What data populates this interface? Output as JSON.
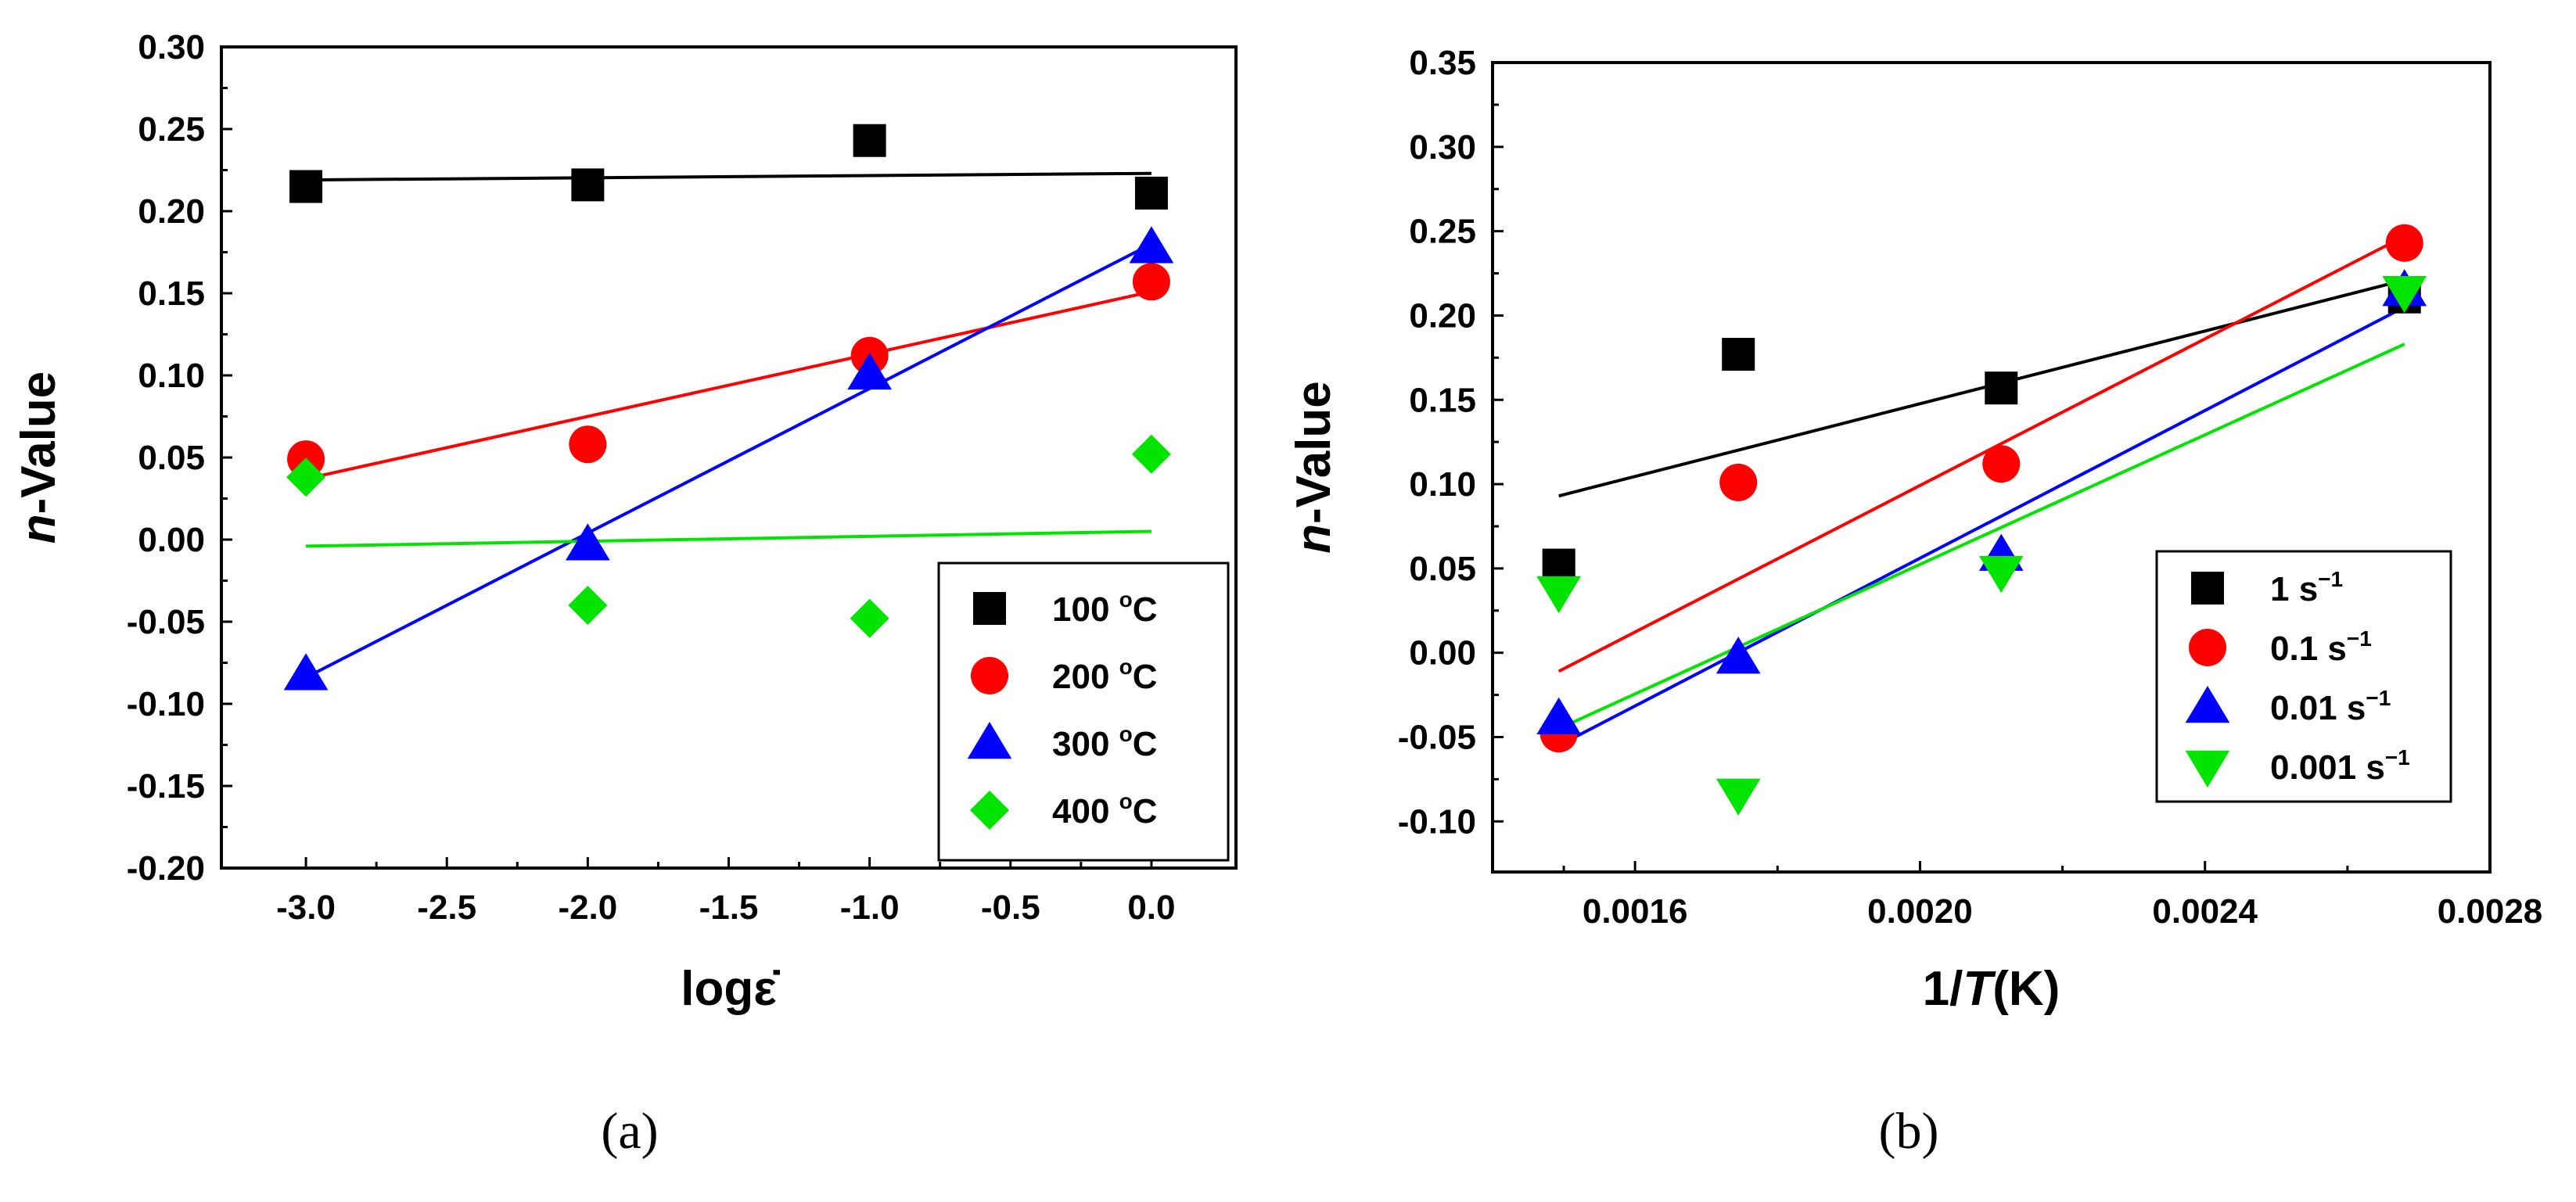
{
  "chart_data": [
    {
      "type": "scatter",
      "panel_label": "(a)",
      "ylabel": {
        "prefix": "n",
        "suffix": "-Value"
      },
      "xlabel": "logε̇",
      "xlim": [
        -3.3,
        0.3
      ],
      "ylim": [
        -0.2,
        0.3
      ],
      "xticks": [
        -3.0,
        -2.5,
        -2.0,
        -1.5,
        -1.0,
        -0.5,
        0.0
      ],
      "xtick_labels": [
        "-3.0",
        "-2.5",
        "-2.0",
        "-1.5",
        "-1.0",
        "-0.5",
        "0.0"
      ],
      "yticks": [
        -0.2,
        -0.15,
        -0.1,
        -0.05,
        0.0,
        0.05,
        0.1,
        0.15,
        0.2,
        0.25,
        0.3
      ],
      "ytick_labels": [
        "-0.20",
        "-0.15",
        "-0.10",
        "-0.05",
        "0.00",
        "0.05",
        "0.10",
        "0.15",
        "0.20",
        "0.25",
        "0.30"
      ],
      "legend_position": "bottom-right",
      "series": [
        {
          "name": "100",
          "unit": "oC",
          "color": "#000000",
          "marker": "square",
          "x": [
            -3,
            -2,
            -1,
            0
          ],
          "y": [
            0.215,
            0.216,
            0.243,
            0.211
          ],
          "fit": [
            [
              -3,
              0.219
            ],
            [
              0,
              0.223
            ]
          ]
        },
        {
          "name": "200",
          "unit": "oC",
          "color": "#ff0000",
          "marker": "circle",
          "x": [
            -3,
            -2,
            -1,
            0
          ],
          "y": [
            0.049,
            0.058,
            0.112,
            0.157
          ],
          "fit": [
            [
              -3,
              0.037
            ],
            [
              0,
              0.151
            ]
          ]
        },
        {
          "name": "300",
          "unit": "oC",
          "color": "#0000ff",
          "marker": "triangle-up",
          "x": [
            -3,
            -2,
            -1,
            0
          ],
          "y": [
            -0.082,
            -0.003,
            0.101,
            0.178
          ],
          "fit": [
            [
              -3,
              -0.084
            ],
            [
              0,
              0.18
            ]
          ]
        },
        {
          "name": "400",
          "unit": "oC",
          "color": "#00e400",
          "marker": "diamond",
          "x": [
            -3,
            -2,
            -1,
            0
          ],
          "y": [
            0.038,
            -0.04,
            -0.048,
            0.052
          ],
          "fit": [
            [
              -3,
              -0.004
            ],
            [
              0,
              0.005
            ]
          ]
        }
      ]
    },
    {
      "type": "scatter",
      "panel_label": "(b)",
      "ylabel": {
        "prefix": "n",
        "suffix": "-Value"
      },
      "xlabel": {
        "prefix": "1/",
        "italic": "T",
        "suffix": "(K)"
      },
      "xlim": [
        0.0014,
        0.0028
      ],
      "ylim": [
        -0.13,
        0.35
      ],
      "xticks": [
        0.0016,
        0.002,
        0.0024,
        0.0028
      ],
      "xtick_labels": [
        "0.0016",
        "0.0020",
        "0.0024",
        "0.0028"
      ],
      "yticks": [
        -0.1,
        -0.05,
        0.0,
        0.05,
        0.1,
        0.15,
        0.2,
        0.25,
        0.3,
        0.35
      ],
      "ytick_labels": [
        "-0.10",
        "-0.05",
        "0.00",
        "0.05",
        "0.10",
        "0.15",
        "0.20",
        "0.25",
        "0.30",
        "0.35"
      ],
      "legend_position": "bottom-right",
      "series": [
        {
          "name": "1",
          "unit": "s",
          "unit_exp": "−1",
          "color": "#000000",
          "marker": "square",
          "x": [
            0.001493,
            0.001745,
            0.002114,
            0.00268
          ],
          "y": [
            0.052,
            0.177,
            0.157,
            0.211
          ],
          "fit": [
            [
              0.001493,
              0.093
            ],
            [
              0.00268,
              0.221
            ]
          ]
        },
        {
          "name": "0.1",
          "unit": "s",
          "unit_exp": "−1",
          "color": "#ff0000",
          "marker": "circle",
          "x": [
            0.001493,
            0.001745,
            0.002114,
            0.00268
          ],
          "y": [
            -0.048,
            0.101,
            0.112,
            0.243
          ],
          "fit": [
            [
              0.001493,
              -0.011
            ],
            [
              0.00268,
              0.247
            ]
          ]
        },
        {
          "name": "0.01",
          "unit": "s",
          "unit_exp": "−1",
          "color": "#0000ff",
          "marker": "triangle-up",
          "x": [
            0.001493,
            0.001745,
            0.002114,
            0.00268
          ],
          "y": [
            -0.039,
            -0.003,
            0.058,
            0.215
          ],
          "fit": [
            [
              0.001493,
              -0.055
            ],
            [
              0.00268,
              0.205
            ]
          ]
        },
        {
          "name": "0.001",
          "unit": "s",
          "unit_exp": "−1",
          "color": "#00e400",
          "marker": "triangle-down",
          "x": [
            0.001493,
            0.001745,
            0.002114,
            0.00268
          ],
          "y": [
            0.036,
            -0.084,
            0.048,
            0.214
          ],
          "fit": [
            [
              0.001493,
              -0.045
            ],
            [
              0.00268,
              0.183
            ]
          ]
        }
      ]
    }
  ]
}
